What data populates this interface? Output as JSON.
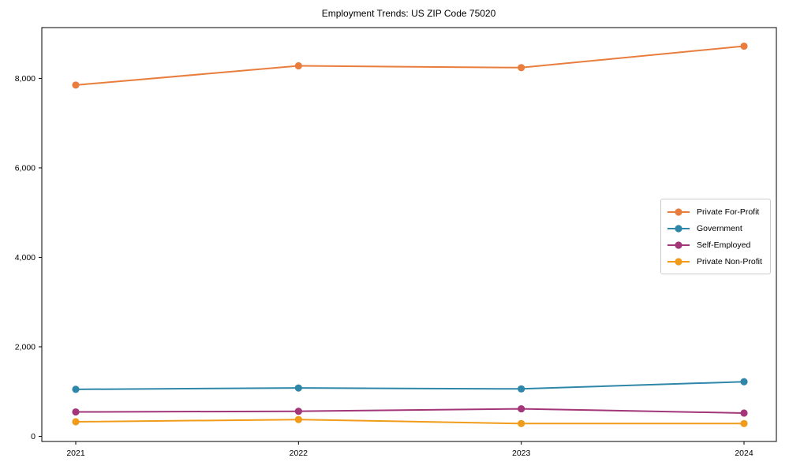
{
  "chart_data": {
    "type": "line",
    "title": "Employment Trends: US ZIP Code 75020",
    "x": [
      2021,
      2022,
      2023,
      2024
    ],
    "x_tick_labels": [
      "2021",
      "2022",
      "2023",
      "2024"
    ],
    "y_ticks": [
      0,
      2000,
      4000,
      6000,
      8000
    ],
    "y_tick_labels": [
      "0",
      "2,000",
      "4,000",
      "6,000",
      "8,000"
    ],
    "ylim": [
      -115,
      9135
    ],
    "grid": false,
    "legend_position": "center-right",
    "series": [
      {
        "name": "Private For-Profit",
        "color": "#e87d3e",
        "values": [
          7850,
          8280,
          8240,
          8720
        ]
      },
      {
        "name": "Government",
        "color": "#2e86a8",
        "values": [
          1050,
          1080,
          1060,
          1220
        ]
      },
      {
        "name": "Self-Employed",
        "color": "#a23679",
        "values": [
          545,
          560,
          615,
          520
        ]
      },
      {
        "name": "Private Non-Profit",
        "color": "#f09c1a",
        "values": [
          325,
          375,
          285,
          285
        ]
      }
    ]
  }
}
